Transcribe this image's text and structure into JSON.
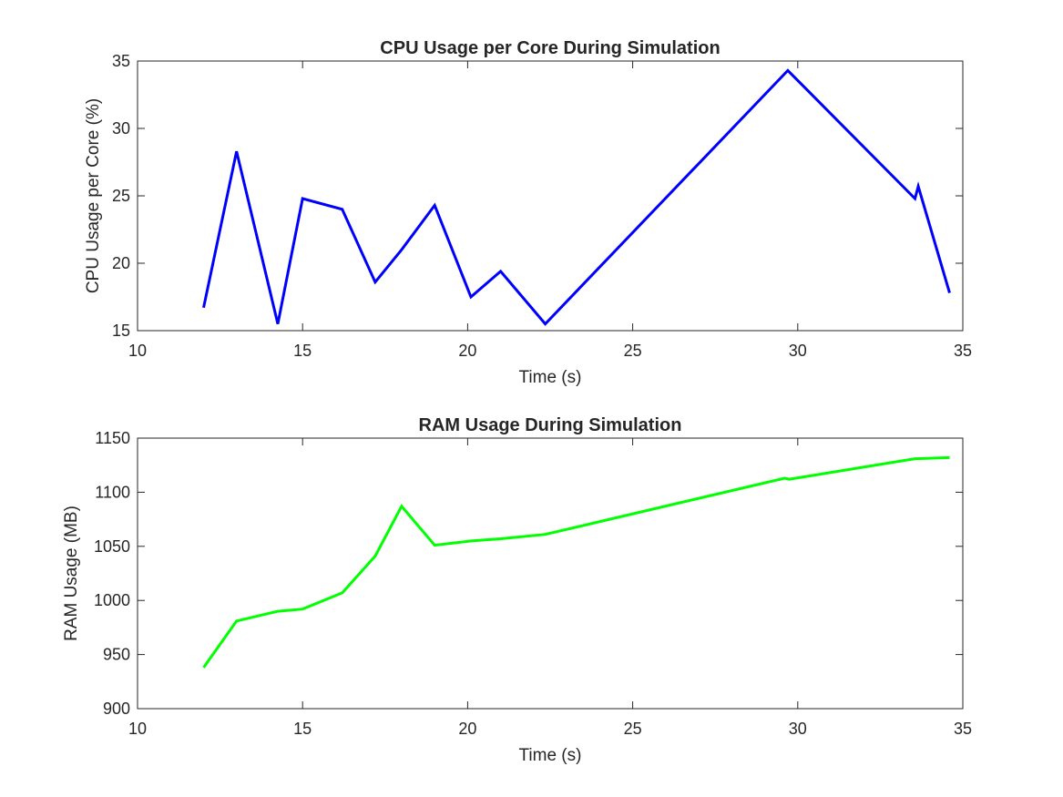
{
  "chart_data": [
    {
      "type": "line",
      "title": "CPU Usage per Core During Simulation",
      "xlabel": "Time (s)",
      "ylabel": "CPU Usage per Core (%)",
      "xlim": [
        10,
        35
      ],
      "ylim": [
        15,
        35
      ],
      "xticks": [
        10,
        15,
        20,
        25,
        30,
        35
      ],
      "yticks": [
        15,
        20,
        25,
        30,
        35
      ],
      "grid": false,
      "color": "#0000ff",
      "series": [
        {
          "x": [
            12.0,
            13.0,
            14.25,
            15.0,
            16.2,
            17.2,
            18.0,
            19.0,
            20.1,
            21.0,
            22.35,
            29.7,
            33.55,
            33.65,
            34.6
          ],
          "values": [
            16.7,
            28.3,
            15.5,
            24.8,
            24.0,
            18.6,
            21.0,
            24.3,
            17.5,
            19.4,
            15.5,
            34.3,
            24.8,
            25.7,
            17.8
          ]
        }
      ]
    },
    {
      "type": "line",
      "title": "RAM Usage During Simulation",
      "xlabel": "Time (s)",
      "ylabel": "RAM Usage (MB)",
      "xlim": [
        10,
        35
      ],
      "ylim": [
        900,
        1150
      ],
      "xticks": [
        10,
        15,
        20,
        25,
        30,
        35
      ],
      "yticks": [
        900,
        950,
        1000,
        1050,
        1100,
        1150
      ],
      "grid": false,
      "color": "#00ff00",
      "series": [
        {
          "x": [
            12.0,
            13.0,
            14.25,
            15.0,
            16.2,
            17.2,
            18.0,
            19.0,
            20.1,
            21.0,
            22.35,
            29.6,
            29.75,
            33.55,
            34.6
          ],
          "values": [
            938,
            981,
            990,
            992,
            1007,
            1041,
            1087,
            1051,
            1055,
            1057,
            1061,
            1113,
            1112,
            1131,
            1132
          ]
        }
      ]
    }
  ]
}
